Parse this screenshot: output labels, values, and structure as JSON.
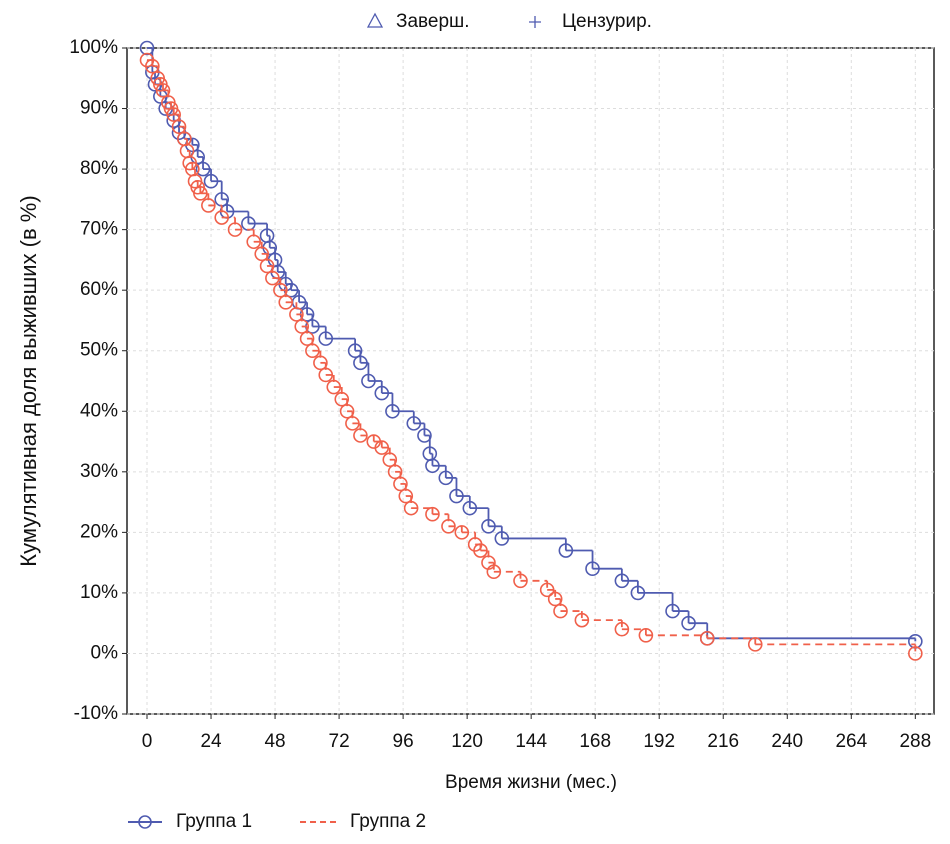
{
  "chart_data": {
    "type": "step",
    "x_label": "Время жизни (мес.)",
    "y_label": "Кумулятивная доля выживших (в %)",
    "marker_legend": [
      "Заверш.",
      "Цензурир."
    ],
    "xlim": [
      -7.5,
      295
    ],
    "ylim": [
      -10,
      100
    ],
    "xticks": [
      0,
      24,
      48,
      72,
      96,
      120,
      144,
      168,
      192,
      216,
      240,
      264,
      288
    ],
    "yticks": [
      {
        "value": -10,
        "label": "-10%"
      },
      {
        "value": 0,
        "label": "0%"
      },
      {
        "value": 10,
        "label": "10%"
      },
      {
        "value": 20,
        "label": "20%"
      },
      {
        "value": 30,
        "label": "30%"
      },
      {
        "value": 40,
        "label": "40%"
      },
      {
        "value": 50,
        "label": "50%"
      },
      {
        "value": 60,
        "label": "60%"
      },
      {
        "value": 70,
        "label": "70%"
      },
      {
        "value": 80,
        "label": "80%"
      },
      {
        "value": 90,
        "label": "90%"
      },
      {
        "value": 100,
        "label": "100%"
      }
    ],
    "grid": true,
    "series": [
      {
        "name": "Группа 1",
        "color": "#4f5bb0",
        "line_style": "solid",
        "x": [
          0,
          2,
          3,
          5,
          7,
          10,
          12,
          14,
          17,
          19,
          21,
          24,
          28,
          30,
          38,
          45,
          46,
          48,
          49,
          52,
          54,
          57,
          60,
          62,
          67,
          78,
          80,
          83,
          88,
          92,
          100,
          104,
          106,
          107,
          112,
          116,
          121,
          128,
          133,
          157,
          167,
          178,
          184,
          197,
          203,
          210,
          288
        ],
        "values": [
          100,
          96,
          94,
          92,
          90,
          88,
          86,
          85,
          84,
          82,
          80,
          78,
          75,
          73,
          71,
          69,
          67,
          65,
          63,
          61,
          60,
          58,
          56,
          54,
          52,
          50,
          48,
          45,
          43,
          40,
          38,
          36,
          33,
          31,
          29,
          26,
          24,
          21,
          19,
          17,
          14,
          12,
          10,
          7,
          5,
          2.5,
          2
        ]
      },
      {
        "name": "Группа 2",
        "color": "#f0604a",
        "line_style": "dashed",
        "x": [
          0,
          2,
          4,
          5,
          6,
          8,
          9,
          10,
          12,
          14,
          15,
          16,
          17,
          18,
          19,
          20,
          23,
          28,
          33,
          40,
          43,
          45,
          47,
          50,
          52,
          56,
          58,
          60,
          62,
          65,
          67,
          70,
          73,
          75,
          77,
          80,
          85,
          88,
          91,
          93,
          95,
          97,
          99,
          107,
          113,
          118,
          123,
          125,
          128,
          130,
          140,
          150,
          153,
          155,
          163,
          178,
          187,
          210,
          228,
          288
        ],
        "values": [
          98,
          97,
          95,
          94,
          93,
          91,
          90,
          89,
          87,
          85,
          83,
          81,
          80,
          78,
          77,
          76,
          74,
          72,
          70,
          68,
          66,
          64,
          62,
          60,
          58,
          56,
          54,
          52,
          50,
          48,
          46,
          44,
          42,
          40,
          38,
          36,
          35,
          34,
          32,
          30,
          28,
          26,
          24,
          23,
          21,
          20,
          18,
          17,
          15,
          13.5,
          12,
          10.5,
          9,
          7,
          5.5,
          4,
          3,
          2.5,
          1.5,
          0
        ]
      }
    ]
  }
}
